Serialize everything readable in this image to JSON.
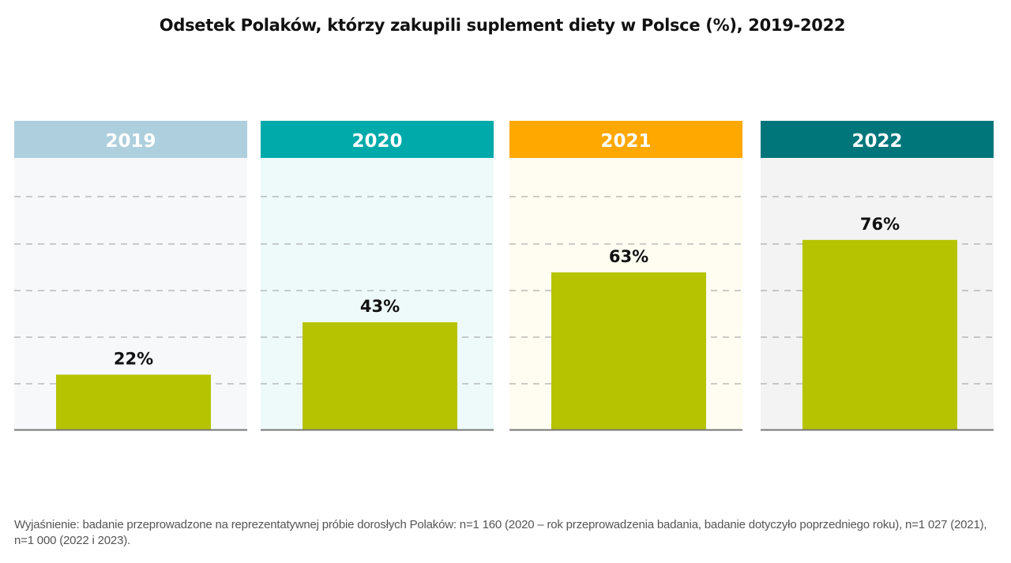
{
  "chart_data": {
    "type": "bar",
    "title": "Odsetek Polaków, którzy zakupili suplement diety w Polsce (%), 2019-2022",
    "categories": [
      "2019",
      "2020",
      "2021",
      "2022"
    ],
    "values": [
      22,
      43,
      63,
      76
    ],
    "data_labels": [
      "22%",
      "43%",
      "63%",
      "76%"
    ],
    "xlabel": "",
    "ylabel": "",
    "ylim": [
      0,
      100
    ],
    "grid": true,
    "colors": {
      "bar": "#b5c300",
      "headers": [
        "#aecfde",
        "#00aaaa",
        "#ffa800",
        "#00767a"
      ],
      "panels": [
        "#f6f8fa",
        "#eefafa",
        "#fffcf1",
        "#f3f3f3"
      ]
    }
  },
  "footnote": "Wyjaśnienie: badanie przeprowadzone na reprezentatywnej próbie dorosłych Polaków: n=1 160 (2020 – rok przeprowadzenia badania, badanie dotyczyło poprzedniego roku), n=1 027 (2021), n=1 000 (2022 i 2023)."
}
